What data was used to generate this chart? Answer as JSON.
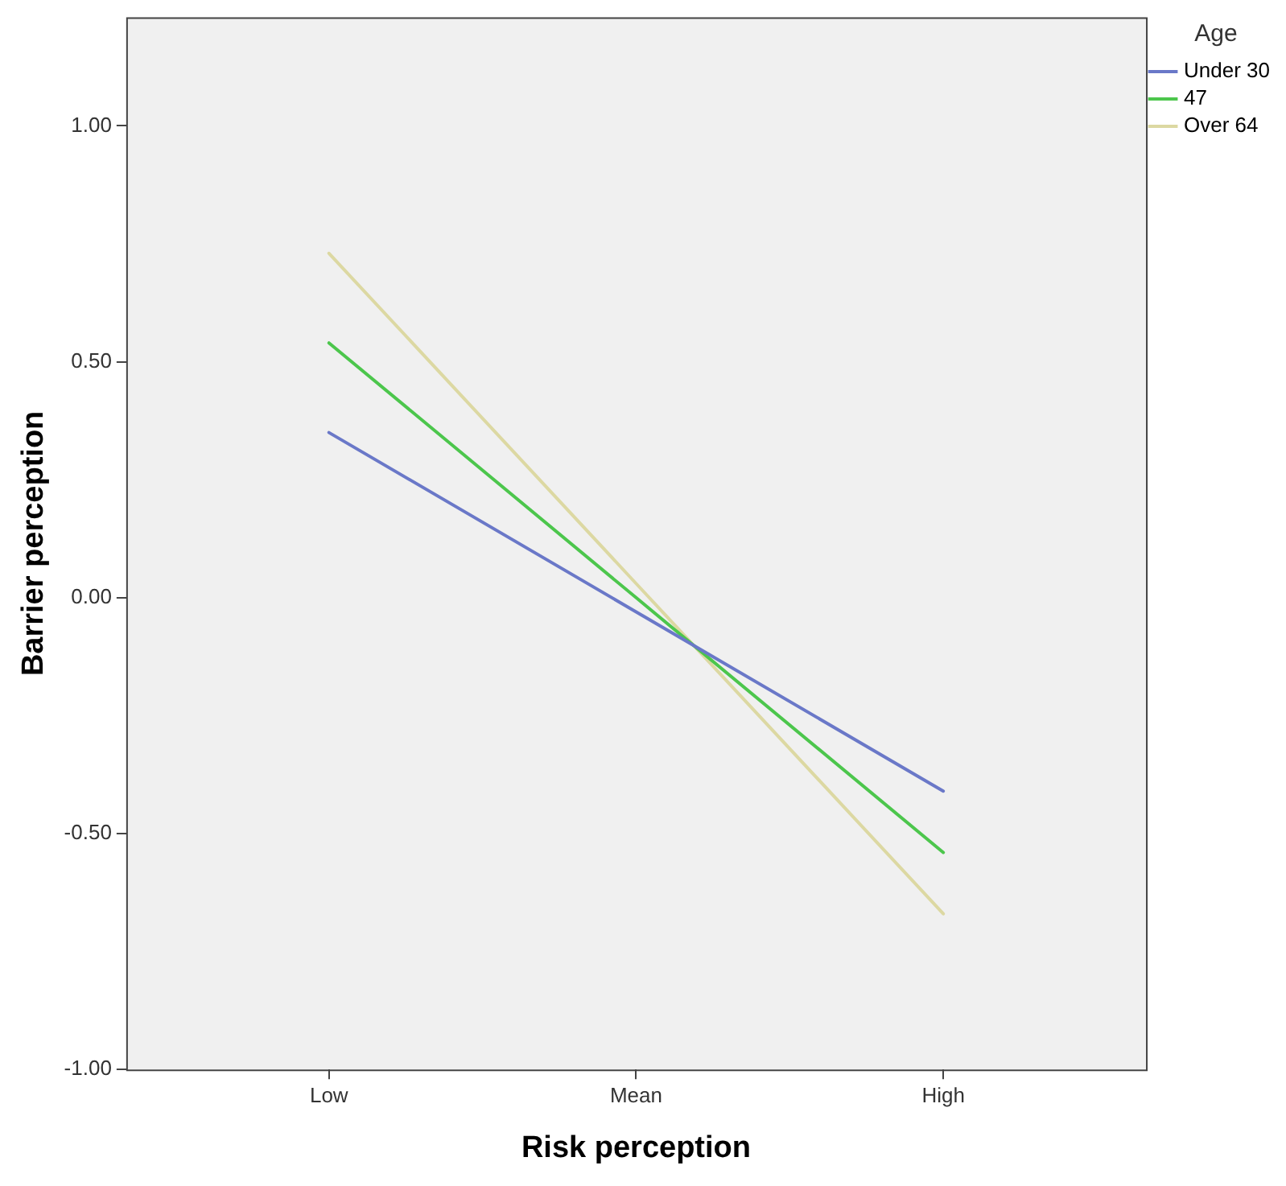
{
  "chart_data": {
    "type": "line",
    "xlabel": "Risk perception",
    "ylabel": "Barrier perception",
    "legend_title": "Age",
    "categories": [
      "Low",
      "Mean",
      "High"
    ],
    "series": [
      {
        "name": "Under 30",
        "color": "#6a78c8",
        "values": [
          0.35,
          -0.03,
          -0.41
        ]
      },
      {
        "name": "47",
        "color": "#4cc64c",
        "values": [
          0.54,
          0.0,
          -0.54
        ]
      },
      {
        "name": "Over 64",
        "color": "#dcd8a2",
        "values": [
          0.73,
          0.03,
          -0.67
        ]
      }
    ],
    "ylim": [
      -1,
      1.23
    ],
    "yticks": [
      {
        "value": -1,
        "label": "-1.00"
      },
      {
        "value": -0.5,
        "label": "-0.50"
      },
      {
        "value": 0,
        "label": "0.00"
      },
      {
        "value": 0.5,
        "label": "0.50"
      },
      {
        "value": 1,
        "label": "1.00"
      }
    ],
    "grid": false,
    "legend": "top right",
    "marker": "none",
    "line_style": "solid"
  }
}
